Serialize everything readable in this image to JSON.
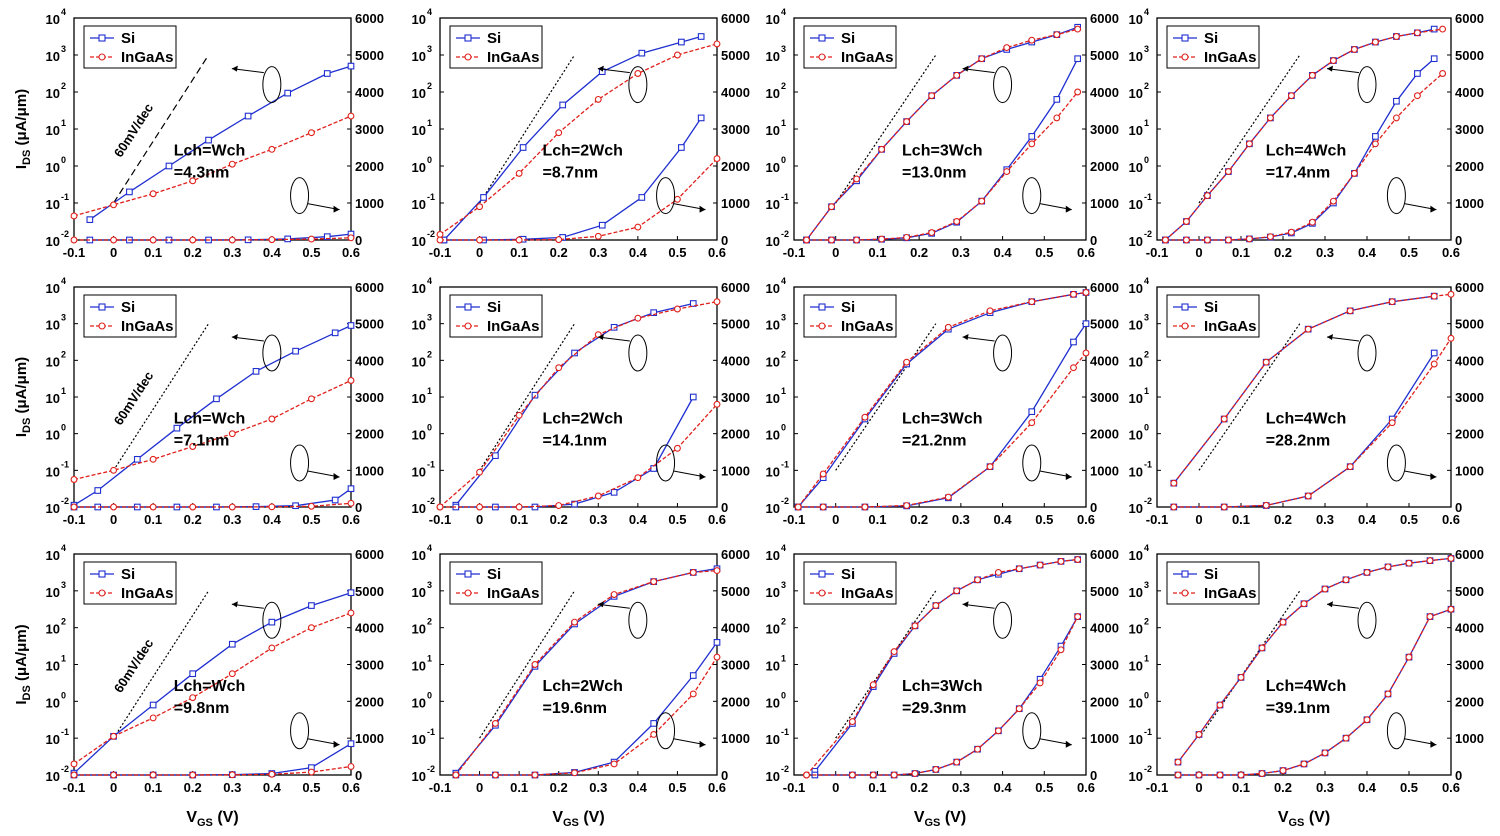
{
  "colors": {
    "si": "#1f2fd0",
    "ingaas": "#e0201b",
    "ref": "#000000",
    "axis": "#000000"
  },
  "labels": {
    "x_axis": "V",
    "x_sub": "GS",
    "x_unit": "(V)",
    "y_axis": "I",
    "y_sub": "DS",
    "y_unit": "(μA/μm)",
    "slope": "60mV/dec"
  },
  "chart_data": {
    "type": "line",
    "xlim": [
      -0.1,
      0.6
    ],
    "x_ticks": [
      "-0.1",
      "0",
      "0.1",
      "0.2",
      "0.3",
      "0.4",
      "0.5",
      "0.6"
    ],
    "y_log_ticks": [
      "10",
      "10",
      "10",
      "10",
      "10",
      "10",
      "10"
    ],
    "y_log_exps": [
      "-2",
      "-1",
      "0",
      "1",
      "2",
      "3",
      "4"
    ],
    "y_log_range": [
      -2,
      4
    ],
    "y_lin_ticks": [
      "0",
      "1000",
      "2000",
      "3000",
      "4000",
      "5000",
      "6000"
    ],
    "y_lin_range": [
      0,
      6000
    ],
    "legend": [
      "Si",
      "InGaAs"
    ],
    "panels": [
      {
        "label1": "Lch=Wch",
        "label2": "=4.3nm",
        "slope_label": true,
        "si": {
          "x": [
            -0.06,
            0.04,
            0.14,
            0.24,
            0.34,
            0.44,
            0.54,
            0.6
          ],
          "log": [
            -1.45,
            -0.7,
            0.0,
            0.7,
            1.35,
            1.97,
            2.5,
            2.7
          ],
          "lin": [
            0,
            0,
            0,
            0,
            5,
            30,
            90,
            160
          ]
        },
        "ingaas": {
          "x": [
            -0.1,
            0.0,
            0.1,
            0.2,
            0.3,
            0.4,
            0.5,
            0.6
          ],
          "log": [
            -1.35,
            -1.05,
            -0.75,
            -0.4,
            0.05,
            0.45,
            0.9,
            1.35
          ],
          "lin": [
            0,
            0,
            0,
            0,
            0,
            10,
            25,
            60
          ]
        }
      },
      {
        "label1": "Lch=2Wch",
        "label2": "=8.7nm",
        "slope_label": false,
        "si": {
          "x": [
            -0.09,
            0.01,
            0.11,
            0.21,
            0.31,
            0.41,
            0.51,
            0.56
          ],
          "log": [
            -2.0,
            -0.85,
            0.5,
            1.65,
            2.55,
            3.05,
            3.35,
            3.5
          ],
          "lin": [
            0,
            0,
            20,
            70,
            400,
            1150,
            2500,
            3300
          ]
        },
        "ingaas": {
          "x": [
            -0.1,
            0.0,
            0.1,
            0.2,
            0.3,
            0.4,
            0.5,
            0.6
          ],
          "log": [
            -1.85,
            -1.1,
            -0.2,
            0.9,
            1.8,
            2.5,
            3.0,
            3.3
          ],
          "lin": [
            0,
            0,
            0,
            10,
            100,
            350,
            1100,
            2200
          ]
        }
      },
      {
        "label1": "Lch=3Wch",
        "label2": "=13.0nm",
        "slope_label": false,
        "si": {
          "x": [
            -0.07,
            -0.01,
            0.05,
            0.11,
            0.17,
            0.23,
            0.29,
            0.35,
            0.41,
            0.47,
            0.53,
            0.58
          ],
          "log": [
            -2.0,
            -1.1,
            -0.4,
            0.45,
            1.2,
            1.9,
            2.45,
            2.9,
            3.15,
            3.35,
            3.55,
            3.75
          ],
          "lin": [
            0,
            0,
            0,
            20,
            60,
            180,
            480,
            1050,
            1900,
            2800,
            3800,
            4900
          ]
        },
        "ingaas": {
          "x": [
            -0.07,
            -0.01,
            0.05,
            0.11,
            0.17,
            0.23,
            0.29,
            0.35,
            0.41,
            0.47,
            0.53,
            0.58
          ],
          "log": [
            -2.0,
            -1.1,
            -0.35,
            0.45,
            1.2,
            1.9,
            2.45,
            2.9,
            3.2,
            3.4,
            3.55,
            3.7
          ],
          "lin": [
            0,
            0,
            0,
            25,
            70,
            200,
            500,
            1050,
            1850,
            2600,
            3300,
            4000
          ]
        }
      },
      {
        "label1": "Lch=4Wch",
        "label2": "=17.4nm",
        "slope_label": false,
        "si": {
          "x": [
            -0.08,
            -0.03,
            0.02,
            0.07,
            0.12,
            0.17,
            0.22,
            0.27,
            0.32,
            0.37,
            0.42,
            0.47,
            0.52,
            0.56
          ],
          "log": [
            -2.0,
            -1.5,
            -0.8,
            -0.15,
            0.6,
            1.3,
            1.9,
            2.45,
            2.85,
            3.15,
            3.35,
            3.5,
            3.6,
            3.7
          ],
          "lin": [
            0,
            0,
            0,
            0,
            30,
            80,
            190,
            450,
            1000,
            1800,
            2800,
            3750,
            4500,
            4900
          ]
        },
        "ingaas": {
          "x": [
            -0.08,
            -0.03,
            0.02,
            0.07,
            0.12,
            0.17,
            0.22,
            0.27,
            0.32,
            0.37,
            0.42,
            0.47,
            0.52,
            0.58
          ],
          "log": [
            -2.0,
            -1.5,
            -0.8,
            -0.15,
            0.6,
            1.3,
            1.9,
            2.45,
            2.85,
            3.15,
            3.35,
            3.5,
            3.6,
            3.7
          ],
          "lin": [
            0,
            0,
            0,
            0,
            30,
            90,
            210,
            480,
            1050,
            1800,
            2600,
            3300,
            3900,
            4500
          ]
        }
      },
      {
        "label1": "Lch=Wch",
        "label2": "=7.1nm",
        "slope_label": true,
        "si": {
          "x": [
            -0.1,
            -0.04,
            0.06,
            0.16,
            0.26,
            0.36,
            0.46,
            0.56,
            0.6
          ],
          "log": [
            -1.95,
            -1.55,
            -0.7,
            0.15,
            0.95,
            1.7,
            2.25,
            2.75,
            2.95
          ],
          "lin": [
            0,
            0,
            0,
            0,
            0,
            10,
            35,
            190,
            500
          ]
        },
        "ingaas": {
          "x": [
            -0.1,
            0.0,
            0.1,
            0.2,
            0.3,
            0.4,
            0.5,
            0.6
          ],
          "log": [
            -1.25,
            -1.0,
            -0.7,
            -0.35,
            0.0,
            0.4,
            0.95,
            1.45
          ],
          "lin": [
            0,
            0,
            0,
            0,
            0,
            5,
            20,
            100
          ]
        }
      },
      {
        "label1": "Lch=2Wch",
        "label2": "=14.1nm",
        "slope_label": false,
        "si": {
          "x": [
            -0.06,
            0.04,
            0.14,
            0.24,
            0.34,
            0.44,
            0.54
          ],
          "log": [
            -1.95,
            -0.6,
            1.05,
            2.2,
            2.9,
            3.3,
            3.55
          ],
          "lin": [
            0,
            0,
            0,
            80,
            400,
            1050,
            3000
          ]
        },
        "ingaas": {
          "x": [
            -0.1,
            0.0,
            0.1,
            0.2,
            0.3,
            0.4,
            0.5,
            0.6
          ],
          "log": [
            -2.0,
            -1.05,
            0.5,
            1.8,
            2.7,
            3.15,
            3.4,
            3.6
          ],
          "lin": [
            0,
            0,
            0,
            40,
            300,
            800,
            1600,
            2800
          ]
        }
      },
      {
        "label1": "Lch=3Wch",
        "label2": "=21.2nm",
        "slope_label": false,
        "si": {
          "x": [
            -0.09,
            -0.03,
            0.07,
            0.17,
            0.27,
            0.37,
            0.47,
            0.57,
            0.6
          ],
          "log": [
            -2.0,
            -1.2,
            0.4,
            1.9,
            2.85,
            3.3,
            3.6,
            3.8,
            3.85
          ],
          "lin": [
            0,
            0,
            0,
            30,
            250,
            1100,
            2600,
            4500,
            5000
          ]
        },
        "ingaas": {
          "x": [
            -0.09,
            -0.03,
            0.07,
            0.17,
            0.27,
            0.37,
            0.47,
            0.57,
            0.6
          ],
          "log": [
            -2.0,
            -1.1,
            0.45,
            1.95,
            2.9,
            3.35,
            3.6,
            3.8,
            3.85
          ],
          "lin": [
            0,
            0,
            0,
            40,
            270,
            1100,
            2300,
            3800,
            4200
          ]
        }
      },
      {
        "label1": "Lch=4Wch",
        "label2": "=28.2nm",
        "slope_label": false,
        "si": {
          "x": [
            -0.06,
            0.06,
            0.16,
            0.26,
            0.36,
            0.46,
            0.56
          ],
          "log": [
            -1.35,
            0.4,
            1.95,
            2.85,
            3.35,
            3.6,
            3.75
          ],
          "lin": [
            0,
            0,
            40,
            300,
            1100,
            2400,
            4200
          ]
        },
        "ingaas": {
          "x": [
            -0.06,
            0.06,
            0.16,
            0.26,
            0.36,
            0.46,
            0.56,
            0.6
          ],
          "log": [
            -1.35,
            0.4,
            1.95,
            2.85,
            3.35,
            3.6,
            3.75,
            3.8
          ],
          "lin": [
            0,
            0,
            45,
            300,
            1100,
            2300,
            3900,
            4600
          ]
        }
      },
      {
        "label1": "Lch=Wch",
        "label2": "=9.8nm",
        "slope_label": true,
        "si": {
          "x": [
            -0.1,
            0.0,
            0.1,
            0.2,
            0.3,
            0.4,
            0.5,
            0.6
          ],
          "log": [
            -1.95,
            -0.95,
            -0.1,
            0.75,
            1.55,
            2.15,
            2.6,
            2.95
          ],
          "lin": [
            0,
            0,
            0,
            0,
            10,
            40,
            200,
            850
          ]
        },
        "ingaas": {
          "x": [
            -0.1,
            0.0,
            0.1,
            0.2,
            0.3,
            0.4,
            0.5,
            0.6
          ],
          "log": [
            -1.7,
            -0.95,
            -0.45,
            0.1,
            0.75,
            1.45,
            2.0,
            2.4
          ],
          "lin": [
            0,
            0,
            0,
            0,
            5,
            20,
            80,
            230
          ]
        }
      },
      {
        "label1": "Lch=2Wch",
        "label2": "=19.6nm",
        "slope_label": false,
        "si": {
          "x": [
            -0.06,
            0.04,
            0.14,
            0.24,
            0.34,
            0.44,
            0.54,
            0.6
          ],
          "log": [
            -1.95,
            -0.65,
            0.95,
            2.1,
            2.85,
            3.25,
            3.5,
            3.6
          ],
          "lin": [
            0,
            0,
            0,
            70,
            350,
            1400,
            2700,
            3600
          ]
        },
        "ingaas": {
          "x": [
            -0.06,
            0.04,
            0.14,
            0.24,
            0.34,
            0.44,
            0.54,
            0.6
          ],
          "log": [
            -2.0,
            -0.6,
            1.0,
            2.15,
            2.9,
            3.25,
            3.5,
            3.55
          ],
          "lin": [
            0,
            0,
            0,
            60,
            300,
            1100,
            2200,
            3200
          ]
        }
      },
      {
        "label1": "Lch=3Wch",
        "label2": "=29.3nm",
        "slope_label": false,
        "si": {
          "x": [
            -0.05,
            0.04,
            0.09,
            0.14,
            0.19,
            0.24,
            0.29,
            0.34,
            0.39,
            0.44,
            0.49,
            0.54,
            0.58
          ],
          "log": [
            -1.9,
            -0.6,
            0.4,
            1.3,
            2.05,
            2.6,
            3.0,
            3.3,
            3.45,
            3.6,
            3.7,
            3.8,
            3.85
          ],
          "lin": [
            0,
            0,
            0,
            0,
            40,
            150,
            350,
            700,
            1200,
            1800,
            2600,
            3500,
            4300
          ]
        },
        "ingaas": {
          "x": [
            -0.07,
            0.04,
            0.09,
            0.14,
            0.19,
            0.24,
            0.29,
            0.34,
            0.39,
            0.44,
            0.49,
            0.54,
            0.58
          ],
          "log": [
            -2.0,
            -0.55,
            0.45,
            1.35,
            2.05,
            2.6,
            3.0,
            3.3,
            3.5,
            3.6,
            3.7,
            3.8,
            3.85
          ],
          "lin": [
            0,
            0,
            0,
            0,
            40,
            150,
            350,
            700,
            1200,
            1800,
            2500,
            3400,
            4300
          ]
        }
      },
      {
        "label1": "Lch=4Wch",
        "label2": "=39.1nm",
        "slope_label": false,
        "si": {
          "x": [
            -0.05,
            0.0,
            0.05,
            0.1,
            0.15,
            0.2,
            0.25,
            0.3,
            0.35,
            0.4,
            0.45,
            0.5,
            0.55,
            0.6
          ],
          "log": [
            -1.65,
            -0.9,
            -0.1,
            0.65,
            1.45,
            2.15,
            2.65,
            3.05,
            3.3,
            3.5,
            3.65,
            3.75,
            3.82,
            3.88
          ],
          "lin": [
            0,
            0,
            0,
            0,
            40,
            120,
            300,
            600,
            1000,
            1500,
            2200,
            3200,
            4300,
            4500
          ]
        },
        "ingaas": {
          "x": [
            -0.05,
            0.0,
            0.05,
            0.1,
            0.15,
            0.2,
            0.25,
            0.3,
            0.35,
            0.4,
            0.45,
            0.5,
            0.55,
            0.6
          ],
          "log": [
            -1.65,
            -0.9,
            -0.1,
            0.65,
            1.45,
            2.15,
            2.65,
            3.05,
            3.3,
            3.5,
            3.65,
            3.75,
            3.82,
            3.88
          ],
          "lin": [
            0,
            0,
            0,
            0,
            40,
            120,
            300,
            600,
            1000,
            1500,
            2200,
            3200,
            4300,
            4500
          ]
        }
      }
    ]
  }
}
